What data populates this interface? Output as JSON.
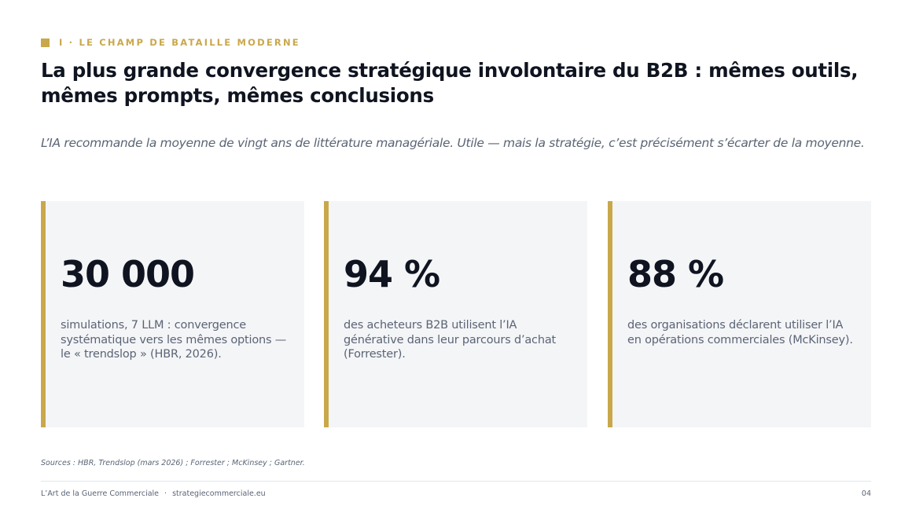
{
  "section": {
    "label": "I · LE CHAMP DE BATAILLE MODERNE"
  },
  "title": "La plus grande convergence stratégique involontaire du B2B : mêmes outils, mêmes prompts, mêmes conclusions",
  "subtitle": "L’IA recommande la moyenne de vingt ans de littérature managériale. Utile — mais la stratégie, c’est précisément s’écarter de la moyenne.",
  "stats": [
    {
      "value": "30 000",
      "description": "simulations, 7 LLM : convergence systématique vers les mêmes options — le « trendslop » (HBR, 2026)."
    },
    {
      "value": "94 %",
      "description": "des acheteurs B2B utilisent l’IA générative dans leur parcours d’achat (Forrester)."
    },
    {
      "value": "88 %",
      "description": "des organisations déclarent utiliser l’IA en opérations commerciales (McKinsey)."
    }
  ],
  "sources": "Sources : HBR, Trendslop (mars 2026) ; Forrester ; McKinsey ; Gartner.",
  "footer": {
    "brand": "L’Art de la Guerre Commerciale",
    "separator": "·",
    "website": "strategiecommerciale.eu",
    "page_number": "04"
  },
  "colors": {
    "accent": "#c9a84c",
    "heading": "#0f1420",
    "muted": "#5b6475",
    "card_background": "#f4f5f7"
  }
}
